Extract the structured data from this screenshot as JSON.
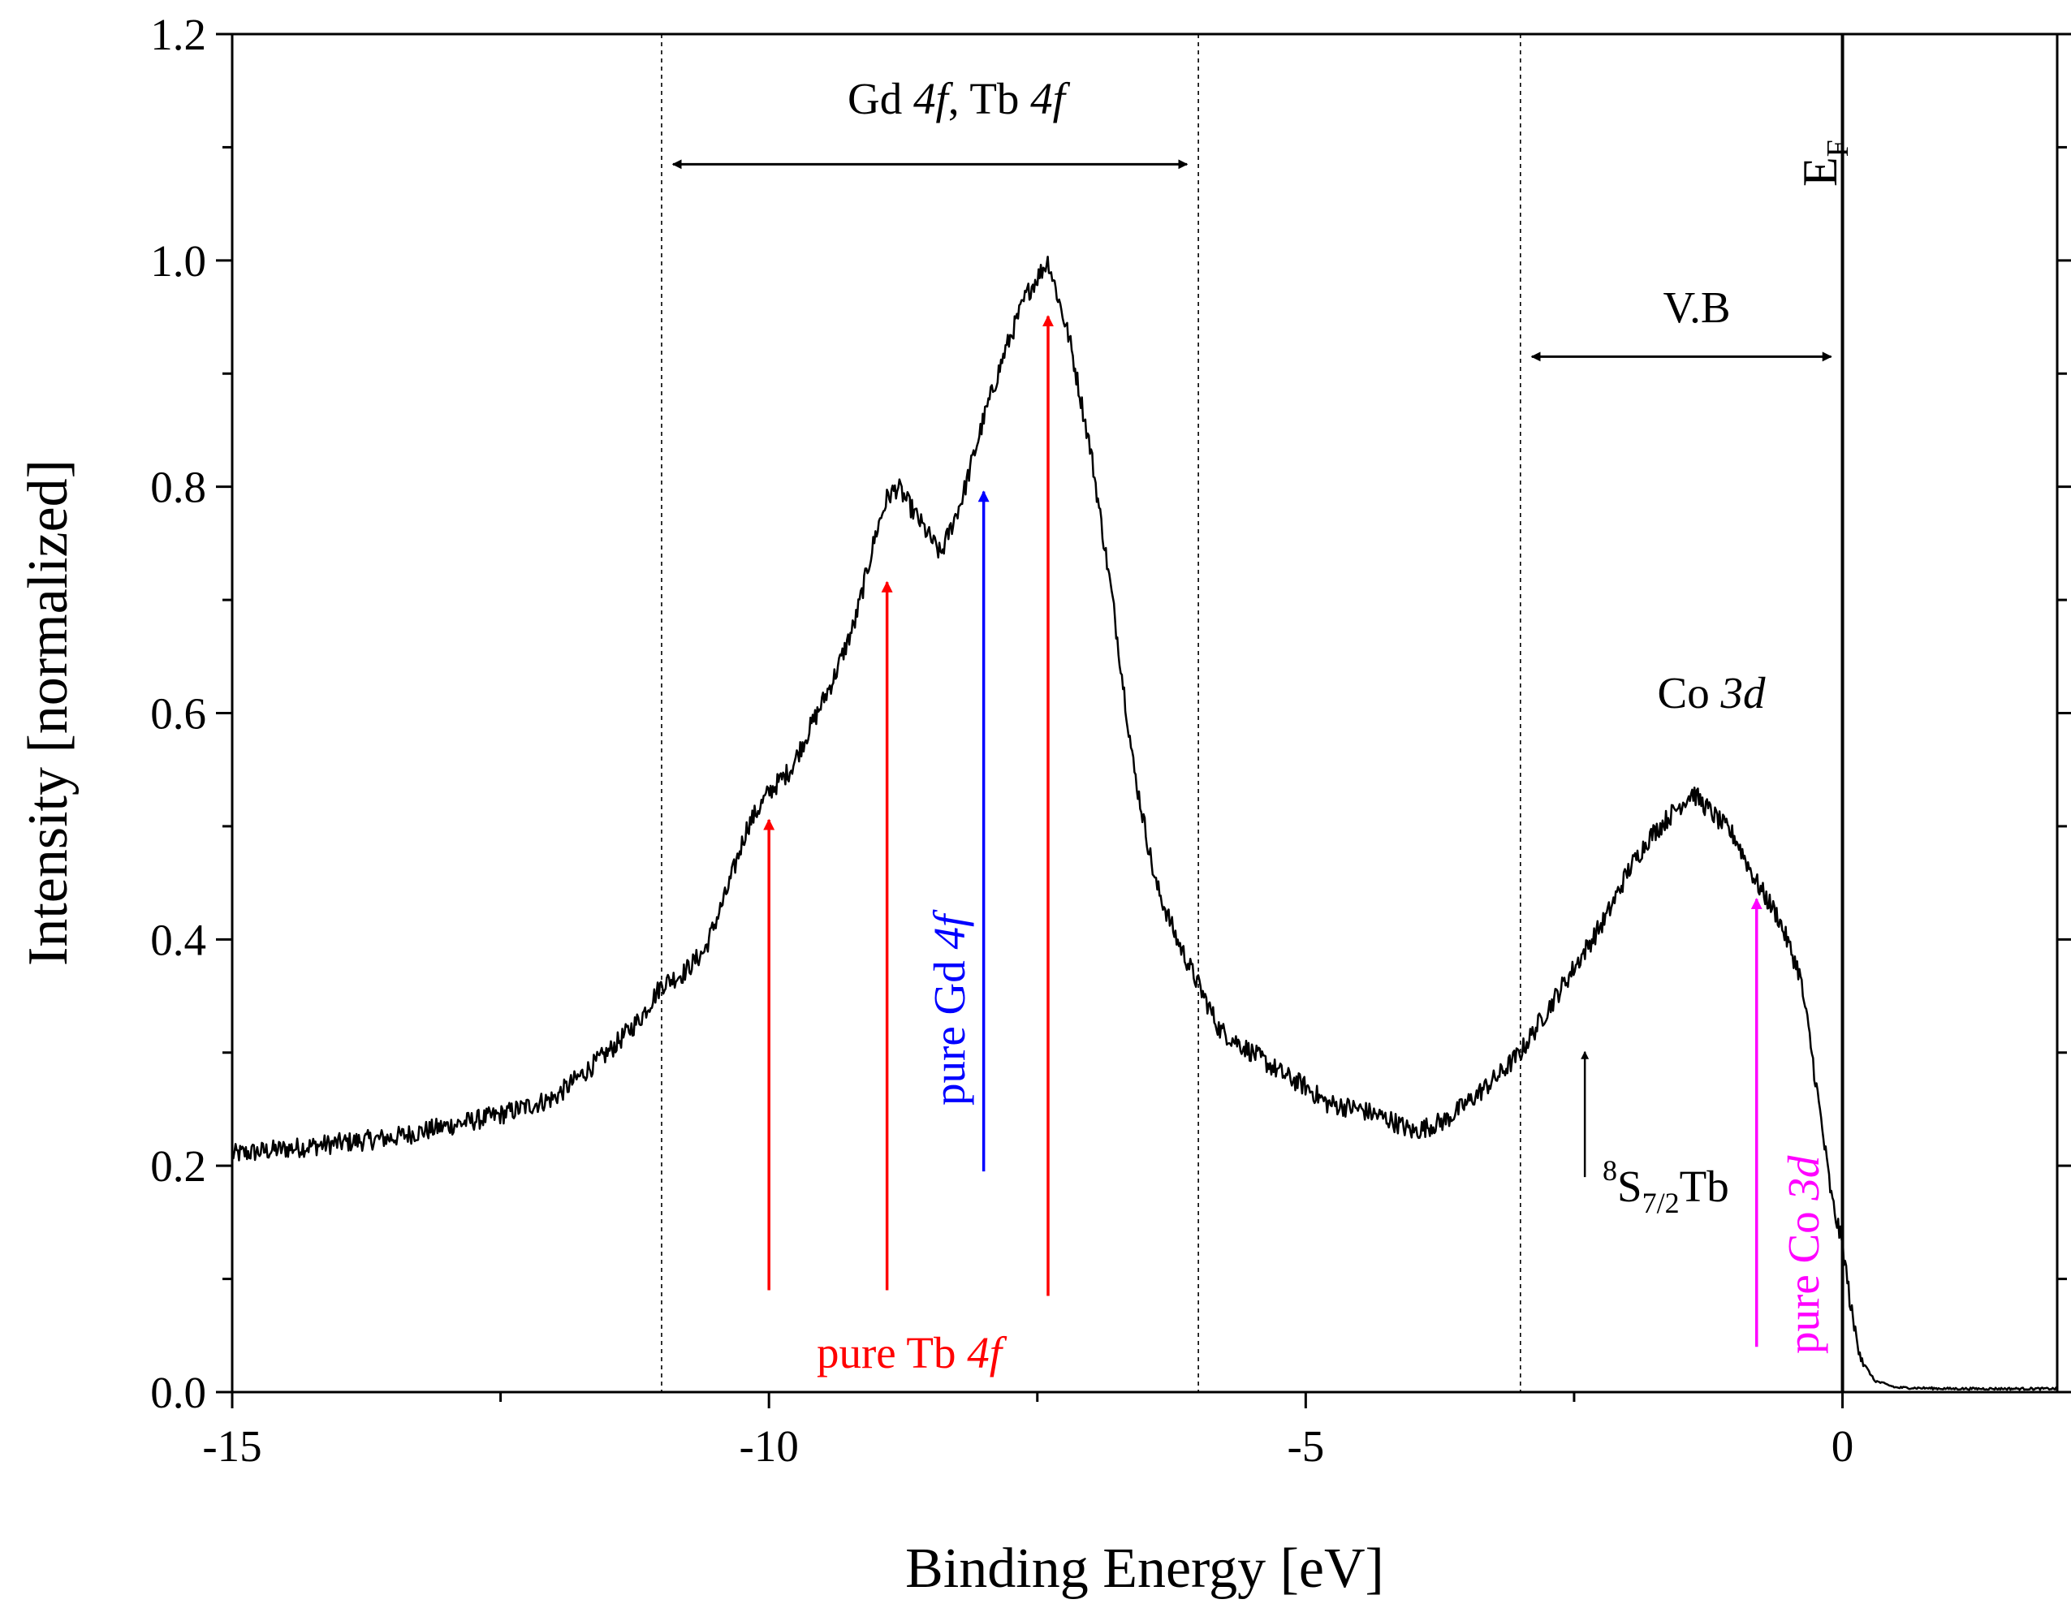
{
  "chart_data": {
    "type": "line",
    "xlabel": "Binding Energy [eV]",
    "ylabel": "Intensity [normalized]",
    "xlim": [
      -15,
      2
    ],
    "ylim": [
      0,
      1.2
    ],
    "x_ticks": [
      -15,
      -10,
      -5,
      0
    ],
    "x_tick_labels": [
      "-15",
      "-10",
      "-5",
      "0"
    ],
    "y_ticks": [
      0,
      0.2,
      0.4,
      0.6,
      0.8,
      1.0,
      1.2
    ],
    "y_tick_labels": [
      "0.0",
      "0.2",
      "0.4",
      "0.6",
      "0.8",
      "1.0",
      "1.2"
    ],
    "series": [
      {
        "name": "spectrum",
        "color": "#000000",
        "x": [
          -15,
          -14.5,
          -14,
          -13.5,
          -13,
          -12.5,
          -12,
          -11.5,
          -11.2,
          -11,
          -10.8,
          -10.6,
          -10.4,
          -10.2,
          -10,
          -9.8,
          -9.6,
          -9.4,
          -9.2,
          -9.0,
          -8.9,
          -8.8,
          -8.6,
          -8.4,
          -8.2,
          -8.0,
          -7.8,
          -7.6,
          -7.4,
          -7.2,
          -7.0,
          -6.8,
          -6.6,
          -6.4,
          -6.2,
          -6.0,
          -5.8,
          -5.5,
          -5.2,
          -5.0,
          -4.8,
          -4.5,
          -4.2,
          -4.0,
          -3.7,
          -3.5,
          -3.2,
          -3.0,
          -2.8,
          -2.6,
          -2.4,
          -2.2,
          -2.0,
          -1.8,
          -1.6,
          -1.4,
          -1.3,
          -1.2,
          -1.0,
          -0.8,
          -0.6,
          -0.4,
          -0.3,
          -0.2,
          -0.1,
          0.0,
          0.1,
          0.2,
          0.3,
          0.5,
          1.0,
          1.5,
          2.0
        ],
        "y": [
          0.21,
          0.215,
          0.22,
          0.225,
          0.235,
          0.245,
          0.26,
          0.3,
          0.33,
          0.36,
          0.37,
          0.39,
          0.44,
          0.5,
          0.53,
          0.55,
          0.59,
          0.63,
          0.68,
          0.76,
          0.79,
          0.8,
          0.77,
          0.74,
          0.79,
          0.86,
          0.92,
          0.97,
          1.0,
          0.93,
          0.83,
          0.7,
          0.55,
          0.45,
          0.4,
          0.36,
          0.32,
          0.3,
          0.28,
          0.27,
          0.255,
          0.25,
          0.24,
          0.23,
          0.24,
          0.255,
          0.28,
          0.3,
          0.33,
          0.36,
          0.39,
          0.42,
          0.46,
          0.49,
          0.51,
          0.53,
          0.52,
          0.51,
          0.49,
          0.45,
          0.42,
          0.37,
          0.31,
          0.24,
          0.17,
          0.13,
          0.06,
          0.025,
          0.01,
          0.004,
          0.003,
          0.003,
          0.003
        ]
      }
    ],
    "vertical_lines": [
      {
        "x": -11,
        "style": "dotted"
      },
      {
        "x": -6,
        "style": "dotted"
      },
      {
        "x": -3,
        "style": "dotted"
      },
      {
        "x": 0,
        "style": "solid"
      }
    ],
    "range_arrows": [
      {
        "from": -11,
        "to": -6,
        "y": 1.085,
        "label": "Gd 4f, Tb 4f"
      },
      {
        "from": -3,
        "to": 0,
        "y": 0.915,
        "label": "V.B"
      }
    ],
    "markers": [
      {
        "name": "tb-arrow-1",
        "x": -10,
        "y_start": 0.09,
        "y_end": 0.51,
        "color": "#ff0000"
      },
      {
        "name": "tb-arrow-2",
        "x": -8.9,
        "y_start": 0.09,
        "y_end": 0.72,
        "color": "#ff0000"
      },
      {
        "name": "gd-arrow",
        "x": -8.0,
        "y_start": 0.195,
        "y_end": 0.8,
        "color": "#0000ff"
      },
      {
        "name": "tb-arrow-3",
        "x": -7.4,
        "y_start": 0.085,
        "y_end": 0.955,
        "color": "#ff0000"
      },
      {
        "name": "s72-arrow",
        "x": -2.4,
        "y_start": 0.19,
        "y_end": 0.305,
        "color": "#000000"
      },
      {
        "name": "co-arrow",
        "x": -0.8,
        "y_start": 0.04,
        "y_end": 0.44,
        "color": "#ff00ff"
      }
    ],
    "annotations": {
      "gd_tb_label": {
        "prefix": "Gd ",
        "f1": "4f",
        "mid": ", Tb ",
        "f2": "4f"
      },
      "vb_label": "V.B",
      "co3d_label": {
        "prefix": "Co ",
        "italic": "3d"
      },
      "ef_label": {
        "main": "E",
        "sub": "F"
      },
      "pure_tb_label": {
        "prefix": "pure Tb ",
        "italic": "4f",
        "color": "#ff0000"
      },
      "pure_gd_label": {
        "prefix": "pure Gd ",
        "italic": "4f",
        "color": "#0000ff"
      },
      "pure_co_label": {
        "prefix": "pure Co ",
        "italic": "3d",
        "color": "#ff00ff"
      },
      "s72_label": {
        "sup": "8",
        "main": "S",
        "sub": "7/2",
        "suffix": "Tb"
      }
    }
  }
}
